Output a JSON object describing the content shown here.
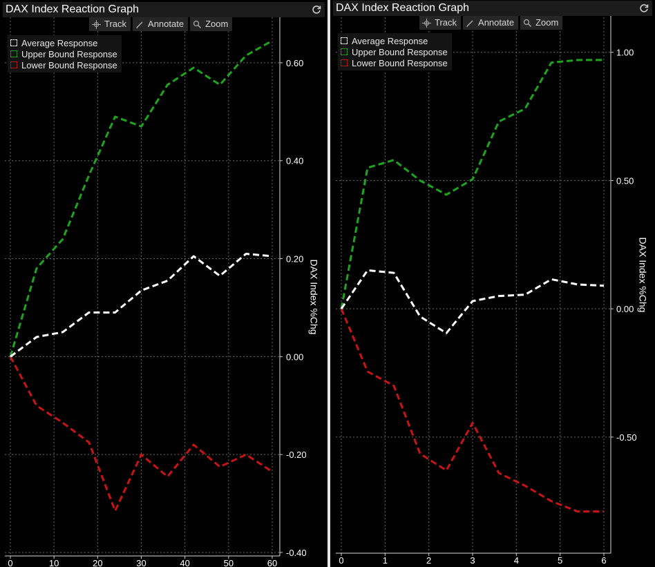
{
  "panels": [
    {
      "title": "DAX Index Reaction Graph",
      "toolbar": {
        "track": "Track",
        "annotate": "Annotate",
        "zoom": "Zoom"
      },
      "icons": {
        "refresh": "refresh-icon",
        "track": "crosshair-icon",
        "annotate": "pencil-icon",
        "zoom": "magnifier-icon"
      }
    },
    {
      "title": "DAX Index Reaction Graph",
      "toolbar": {
        "track": "Track",
        "annotate": "Annotate",
        "zoom": "Zoom"
      },
      "icons": {
        "refresh": "refresh-icon",
        "track": "crosshair-icon",
        "annotate": "pencil-icon",
        "zoom": "magnifier-icon"
      }
    }
  ],
  "colors": {
    "average": "#ffffff",
    "upper": "#1ea51e",
    "lower": "#c81414",
    "grid": "#6a6a6a",
    "background": "#000000"
  },
  "chart_data": [
    {
      "type": "line",
      "ylabel": "DAX Index %Chg",
      "xlim": [
        0,
        60
      ],
      "ylim": [
        -0.4,
        0.7
      ],
      "xticks": [
        "0",
        "10",
        "20",
        "30",
        "40",
        "50",
        "60"
      ],
      "yticks": [
        "0.60",
        "0.40",
        "0.20",
        "0.00",
        "-0.20",
        "-0.40"
      ],
      "ytick_values": [
        0.6,
        0.4,
        0.2,
        0.0,
        -0.2,
        -0.4
      ],
      "grid": true,
      "legend_position": "top-left",
      "x": [
        0,
        6,
        12,
        18,
        24,
        30,
        36,
        42,
        48,
        54,
        60
      ],
      "series": [
        {
          "name": "Average Response",
          "color": "#ffffff",
          "values": [
            0.0,
            0.04,
            0.05,
            0.09,
            0.09,
            0.135,
            0.155,
            0.205,
            0.165,
            0.21,
            0.205
          ]
        },
        {
          "name": "Upper Bound Response",
          "color": "#1ea51e",
          "values": [
            0.0,
            0.18,
            0.24,
            0.37,
            0.49,
            0.47,
            0.555,
            0.59,
            0.555,
            0.615,
            0.645
          ]
        },
        {
          "name": "Lower Bound Response",
          "color": "#c81414",
          "values": [
            0.0,
            -0.1,
            -0.135,
            -0.175,
            -0.315,
            -0.2,
            -0.245,
            -0.18,
            -0.225,
            -0.2,
            -0.235
          ]
        }
      ]
    },
    {
      "type": "line",
      "ylabel": "DAX Index %Chg",
      "xlim": [
        0,
        6
      ],
      "ylim": [
        -0.95,
        1.15
      ],
      "xticks": [
        "0",
        "1",
        "2",
        "3",
        "4",
        "5",
        "6"
      ],
      "yticks": [
        "1.00",
        "0.50",
        "0.00",
        "-0.50"
      ],
      "ytick_values": [
        1.0,
        0.5,
        0.0,
        -0.5
      ],
      "grid": true,
      "legend_position": "top-left",
      "x": [
        0,
        0.6,
        1.2,
        1.8,
        2.4,
        3.0,
        3.6,
        4.2,
        4.8,
        5.4,
        6.0
      ],
      "series": [
        {
          "name": "Average Response",
          "color": "#ffffff",
          "values": [
            0.0,
            0.15,
            0.14,
            -0.03,
            -0.095,
            0.03,
            0.05,
            0.055,
            0.115,
            0.095,
            0.09
          ]
        },
        {
          "name": "Upper Bound Response",
          "color": "#1ea51e",
          "values": [
            0.0,
            0.55,
            0.58,
            0.5,
            0.445,
            0.505,
            0.73,
            0.78,
            0.96,
            0.97,
            0.97
          ]
        },
        {
          "name": "Lower Bound Response",
          "color": "#c81414",
          "values": [
            0.0,
            -0.245,
            -0.3,
            -0.565,
            -0.63,
            -0.445,
            -0.64,
            -0.69,
            -0.75,
            -0.79,
            -0.79
          ]
        }
      ]
    }
  ]
}
